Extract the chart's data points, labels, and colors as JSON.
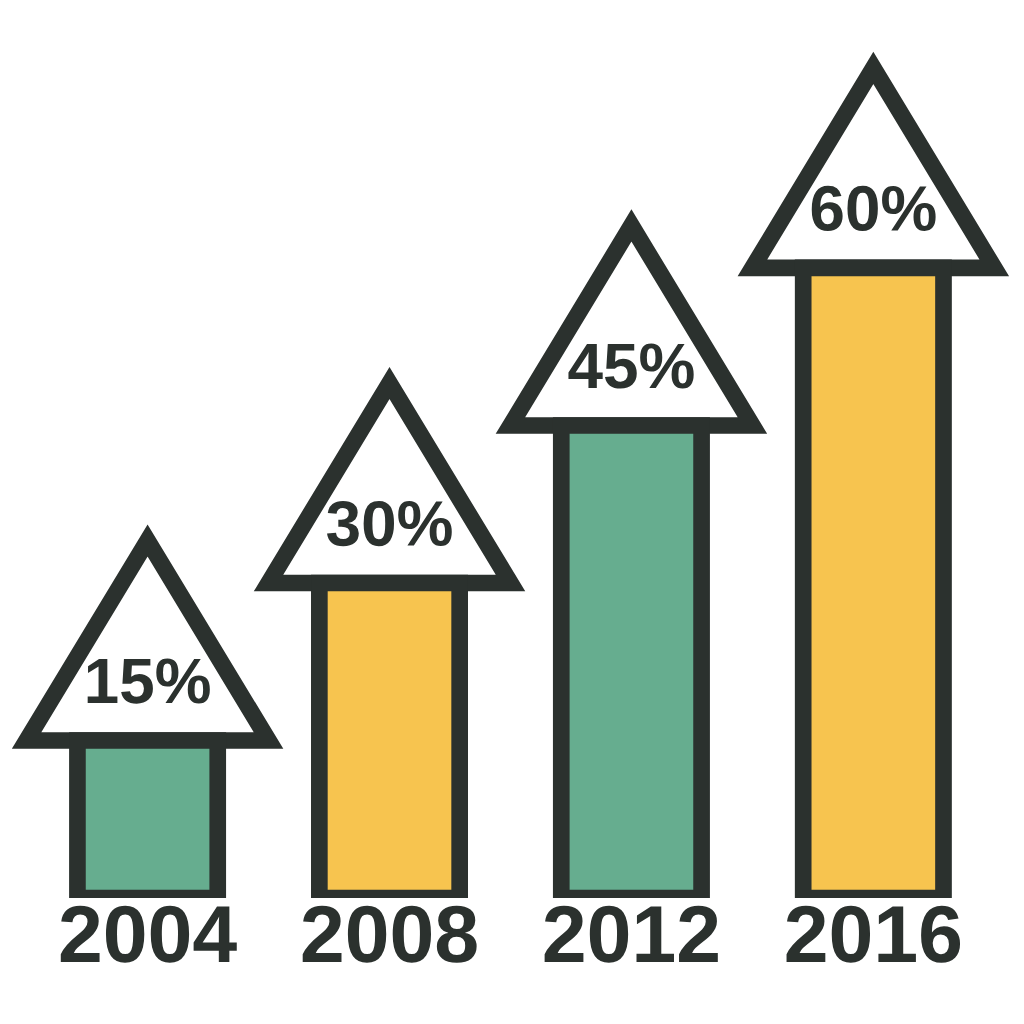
{
  "chart_data": {
    "type": "bar",
    "categories": [
      "2004",
      "2008",
      "2012",
      "2016"
    ],
    "values": [
      15,
      30,
      45,
      60
    ],
    "value_labels": [
      "15%",
      "30%",
      "45%",
      "60%"
    ],
    "colors": [
      "#66ad8f",
      "#f7c44f",
      "#66ad8f",
      "#f7c44f"
    ],
    "tick_labels": "x"
  }
}
